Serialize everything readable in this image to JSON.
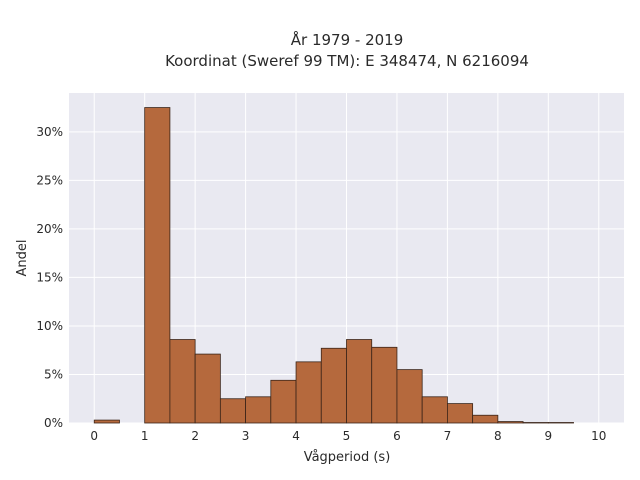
{
  "chart_data": {
    "type": "bar",
    "title_line1": "År 1979 - 2019",
    "title_line2": "Koordinat (Sweref 99 TM): E 348474, N 6216094",
    "xlabel": "Vågperiod (s)",
    "ylabel": "Andel",
    "xlim": [
      -0.5,
      10.5
    ],
    "ylim": [
      0,
      34
    ],
    "x_ticks": [
      0,
      1,
      2,
      3,
      4,
      5,
      6,
      7,
      8,
      9,
      10
    ],
    "y_ticks": [
      0,
      5,
      10,
      15,
      20,
      25,
      30
    ],
    "y_tick_labels": [
      "0%",
      "5%",
      "10%",
      "15%",
      "20%",
      "25%",
      "30%"
    ],
    "bin_width": 0.5,
    "bins": [
      {
        "x0": 0.0,
        "value": 0.3
      },
      {
        "x0": 1.0,
        "value": 32.5
      },
      {
        "x0": 1.5,
        "value": 8.6
      },
      {
        "x0": 2.0,
        "value": 7.1
      },
      {
        "x0": 2.5,
        "value": 2.5
      },
      {
        "x0": 3.0,
        "value": 2.7
      },
      {
        "x0": 3.5,
        "value": 4.4
      },
      {
        "x0": 4.0,
        "value": 6.3
      },
      {
        "x0": 4.5,
        "value": 7.7
      },
      {
        "x0": 5.0,
        "value": 8.6
      },
      {
        "x0": 5.5,
        "value": 7.8
      },
      {
        "x0": 6.0,
        "value": 5.5
      },
      {
        "x0": 6.5,
        "value": 2.7
      },
      {
        "x0": 7.0,
        "value": 2.0
      },
      {
        "x0": 7.5,
        "value": 0.8
      },
      {
        "x0": 8.0,
        "value": 0.15
      },
      {
        "x0": 8.5,
        "value": 0.05
      },
      {
        "x0": 9.0,
        "value": 0.05
      }
    ],
    "grid": true,
    "bar_color": "#b5693d",
    "bar_edge_color": "#3a2418",
    "plot_background": "#e9e9f1"
  }
}
